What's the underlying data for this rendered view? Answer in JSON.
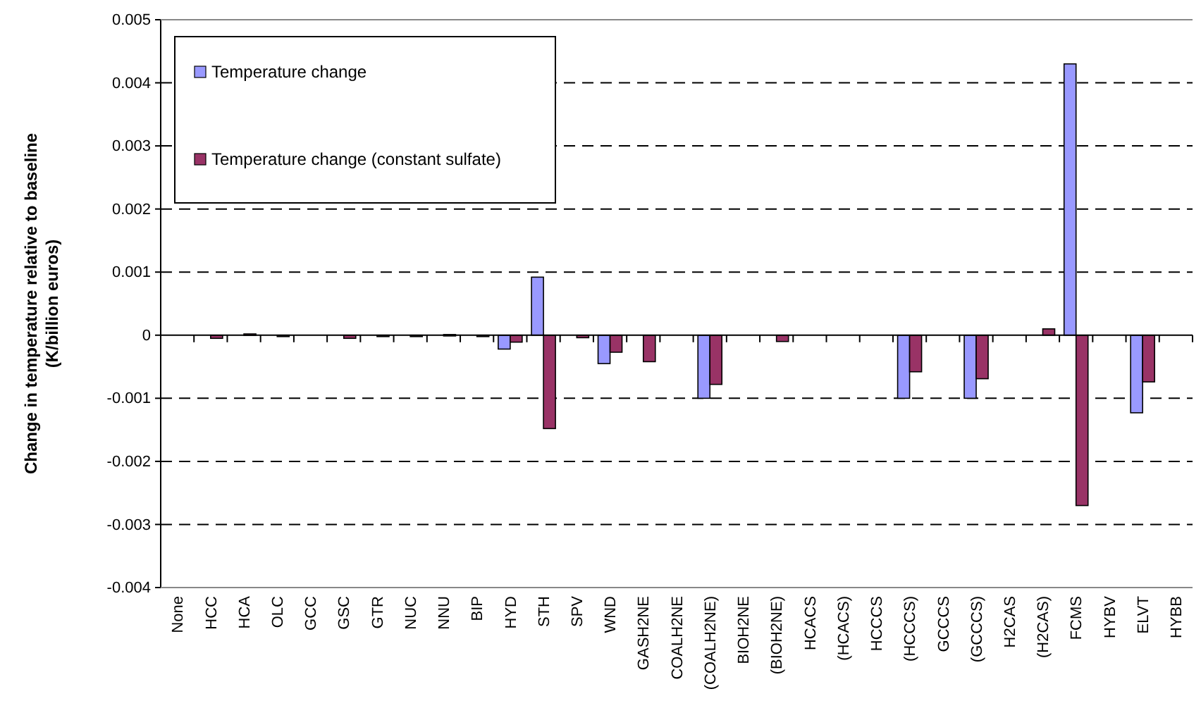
{
  "chart_data": {
    "type": "bar",
    "ylabel": "Change in temperature relative to baseline\n(K/billion euros)",
    "categories": [
      "None",
      "HCC",
      "HCA",
      "OLC",
      "GCC",
      "GSC",
      "GTR",
      "NUC",
      "NNU",
      "BIP",
      "HYD",
      "STH",
      "SPV",
      "WND",
      "GASH2NE",
      "COALH2NE",
      "(COALH2NE)",
      "BIOH2NE",
      "(BIOH2NE)",
      "HCACS",
      "(HCACS)",
      "HCCCS",
      "(HCCCS)",
      "GCCCS",
      "(GCCCS)",
      "H2CAS",
      "(H2CAS)",
      "FCMS",
      "HYBV",
      "ELVT",
      "HYBB"
    ],
    "series": [
      {
        "name": "Temperature change",
        "color": "#9999ff",
        "values": [
          null,
          null,
          null,
          null,
          null,
          null,
          null,
          null,
          null,
          null,
          -0.00022,
          0.00092,
          null,
          -0.00045,
          null,
          null,
          -0.001,
          null,
          null,
          null,
          null,
          null,
          -0.001,
          null,
          -0.001,
          null,
          null,
          0.0043,
          null,
          -0.00123,
          null
        ]
      },
      {
        "name": "Temperature change (constant sulfate)",
        "color": "#993366",
        "values": [
          null,
          -5e-05,
          2e-05,
          -2e-05,
          null,
          -5e-05,
          0,
          -1e-05,
          1e-05,
          -2e-05,
          -0.00011,
          -0.00148,
          -4e-05,
          -0.00027,
          -0.00042,
          null,
          -0.00078,
          null,
          -0.0001,
          null,
          null,
          null,
          -0.00058,
          null,
          -0.00069,
          null,
          0.0001,
          -0.0027,
          null,
          -0.00074,
          null
        ]
      }
    ],
    "ylim": [
      -0.004,
      0.005
    ],
    "yticks": [
      -0.004,
      -0.003,
      -0.002,
      -0.001,
      0,
      0.001,
      0.002,
      0.003,
      0.004,
      0.005
    ],
    "grid": "y",
    "legend": "top left"
  }
}
